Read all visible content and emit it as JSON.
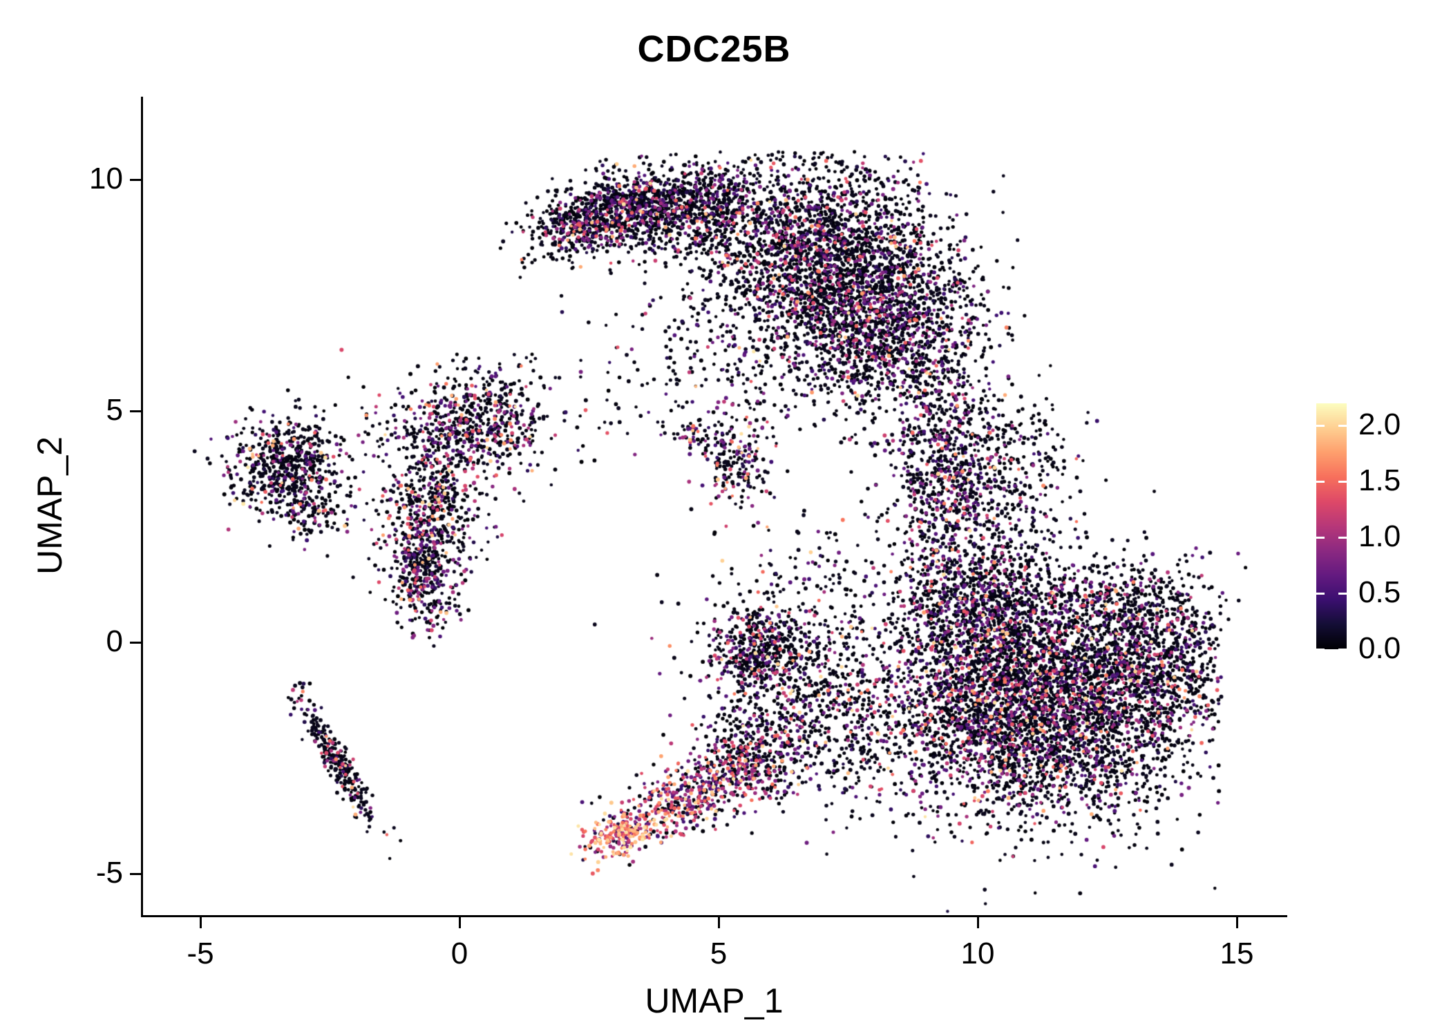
{
  "title": "CDC25B",
  "axes": {
    "x_label": "UMAP_1",
    "y_label": "UMAP_2",
    "x_ticks": [
      -5,
      0,
      5,
      10,
      15
    ],
    "y_ticks": [
      10,
      5,
      0,
      -5
    ]
  },
  "colorbar": {
    "tick_values": [
      2.0,
      1.5,
      1.0,
      0.5,
      0.0
    ],
    "tick_labels": [
      "2.0",
      "1.5",
      "1.0",
      "0.5",
      "0.0"
    ]
  },
  "chart_data": {
    "type": "scatter",
    "title": "CDC25B",
    "xlabel": "UMAP_1",
    "ylabel": "UMAP_2",
    "xlim": [
      -6,
      16
    ],
    "ylim": [
      -5.9,
      11.8
    ],
    "x_ticks": [
      -5,
      0,
      5,
      10,
      15
    ],
    "y_ticks": [
      -5,
      0,
      5,
      10
    ],
    "grid": false,
    "legend_position": "right",
    "point_radius_px": 2.5,
    "color_scale": {
      "name": "magma",
      "domain": [
        0,
        2.2
      ],
      "ticks": [
        0.0,
        0.5,
        1.0,
        1.5,
        2.0
      ],
      "stops": [
        "#000004",
        "#140e36",
        "#3b0f70",
        "#641a80",
        "#8c2981",
        "#b73779",
        "#de4968",
        "#f7705c",
        "#fe9f6d",
        "#fecf92",
        "#fcfdbf"
      ]
    },
    "value_tiers": [
      [
        0,
        0.12
      ],
      [
        0.25,
        0.85
      ],
      [
        0.85,
        1.5
      ],
      [
        1.5,
        2.1
      ]
    ],
    "clusters": [
      {
        "name": "top-arm-left",
        "cx": 2.6,
        "cy": 9.15,
        "sx": 0.75,
        "sy": 0.33,
        "angle": 18,
        "n": 650,
        "weights": [
          0.72,
          0.18,
          0.08,
          0.02
        ],
        "ymax": 10.6
      },
      {
        "name": "top-arm-mid",
        "cx": 4.3,
        "cy": 9.4,
        "sx": 0.95,
        "sy": 0.5,
        "angle": 5,
        "n": 1000,
        "weights": [
          0.72,
          0.18,
          0.08,
          0.02
        ],
        "ymax": 10.6
      },
      {
        "name": "top-main-blob",
        "cx": 7.1,
        "cy": 8.2,
        "sx": 1.25,
        "sy": 1.05,
        "angle": -25,
        "n": 2700,
        "weights": [
          0.76,
          0.15,
          0.07,
          0.02
        ],
        "ymax": 10.6
      },
      {
        "name": "top-blob-lower",
        "cx": 8.3,
        "cy": 6.7,
        "sx": 0.85,
        "sy": 0.8,
        "angle": 0,
        "n": 900,
        "weights": [
          0.74,
          0.17,
          0.07,
          0.02
        ]
      },
      {
        "name": "top-scatter-below",
        "cx": 6.3,
        "cy": 5.9,
        "sx": 1.4,
        "sy": 0.7,
        "angle": 0,
        "n": 230,
        "weights": [
          0.75,
          0.16,
          0.07,
          0.02
        ]
      },
      {
        "name": "right-connector",
        "cx": 9.4,
        "cy": 3.6,
        "sx": 0.6,
        "sy": 1.3,
        "angle": 0,
        "n": 800,
        "weights": [
          0.7,
          0.19,
          0.08,
          0.03
        ]
      },
      {
        "name": "right-connector-scatter",
        "cx": 10.3,
        "cy": 2.9,
        "sx": 0.8,
        "sy": 1.0,
        "angle": 0,
        "n": 280,
        "weights": [
          0.75,
          0.16,
          0.07,
          0.02
        ]
      },
      {
        "name": "right-upper-scatter",
        "cx": 10.9,
        "cy": 4.1,
        "sx": 0.5,
        "sy": 0.7,
        "angle": 0,
        "n": 100,
        "weights": [
          0.8,
          0.13,
          0.05,
          0.02
        ]
      },
      {
        "name": "right-main",
        "cx": 11.2,
        "cy": -1.3,
        "sx": 1.5,
        "sy": 1.25,
        "angle": 0,
        "n": 4300,
        "weights": [
          0.72,
          0.17,
          0.08,
          0.03
        ],
        "xmax": 14.7
      },
      {
        "name": "right-main-east",
        "cx": 13.4,
        "cy": -0.4,
        "sx": 0.8,
        "sy": 0.75,
        "angle": 0,
        "n": 650,
        "weights": [
          0.75,
          0.16,
          0.07,
          0.02
        ],
        "xmax": 14.75
      },
      {
        "name": "right-main-north",
        "cx": 10.1,
        "cy": 0.7,
        "sx": 0.95,
        "sy": 0.75,
        "angle": 0,
        "n": 850,
        "weights": [
          0.72,
          0.18,
          0.07,
          0.03
        ]
      },
      {
        "name": "right-main-tip",
        "cx": 12.9,
        "cy": 1.0,
        "sx": 0.85,
        "sy": 0.5,
        "angle": 0,
        "n": 250,
        "weights": [
          0.78,
          0.14,
          0.06,
          0.02
        ]
      },
      {
        "name": "left-cluster",
        "cx": -3.3,
        "cy": 3.8,
        "sx": 0.55,
        "sy": 0.55,
        "angle": 0,
        "n": 620,
        "weights": [
          0.74,
          0.16,
          0.07,
          0.03
        ]
      },
      {
        "name": "left-cluster-tail",
        "cx": -2.9,
        "cy": 2.9,
        "sx": 0.35,
        "sy": 0.3,
        "angle": 0,
        "n": 90,
        "weights": [
          0.75,
          0.16,
          0.06,
          0.03
        ]
      },
      {
        "name": "centerleft-top",
        "cx": 0.2,
        "cy": 4.6,
        "sx": 0.85,
        "sy": 0.45,
        "angle": 0,
        "n": 520,
        "weights": [
          0.68,
          0.19,
          0.09,
          0.04
        ]
      },
      {
        "name": "centerleft-mid",
        "cx": -0.5,
        "cy": 3.0,
        "sx": 0.55,
        "sy": 0.75,
        "angle": 0,
        "n": 430,
        "weights": [
          0.68,
          0.19,
          0.09,
          0.04
        ]
      },
      {
        "name": "centerleft-low",
        "cx": -0.7,
        "cy": 1.5,
        "sx": 0.35,
        "sy": 0.65,
        "angle": 0,
        "n": 420,
        "weights": [
          0.66,
          0.2,
          0.1,
          0.04
        ]
      },
      {
        "name": "centerleft-topscatter",
        "cx": 0.6,
        "cy": 5.4,
        "sx": 0.55,
        "sy": 0.4,
        "angle": 0,
        "n": 140,
        "weights": [
          0.72,
          0.18,
          0.07,
          0.03
        ]
      },
      {
        "name": "left-diagonal",
        "cx": -2.35,
        "cy": -2.6,
        "sx": 0.75,
        "sy": 0.14,
        "angle": -62,
        "n": 280,
        "weights": [
          0.78,
          0.14,
          0.06,
          0.02
        ]
      },
      {
        "name": "bottom-tip-hot",
        "cx": 3.1,
        "cy": -4.15,
        "sx": 0.33,
        "sy": 0.22,
        "angle": 20,
        "n": 220,
        "weights": [
          0.06,
          0.14,
          0.35,
          0.45
        ]
      },
      {
        "name": "bottom-branch-mid",
        "cx": 4.3,
        "cy": -3.4,
        "sx": 0.7,
        "sy": 0.35,
        "angle": 25,
        "n": 380,
        "weights": [
          0.3,
          0.25,
          0.3,
          0.15
        ]
      },
      {
        "name": "bottom-branch-upper",
        "cx": 5.6,
        "cy": -2.5,
        "sx": 0.6,
        "sy": 0.5,
        "angle": 30,
        "n": 430,
        "weights": [
          0.55,
          0.22,
          0.16,
          0.07
        ]
      },
      {
        "name": "center-small",
        "cx": 5.3,
        "cy": 3.9,
        "sx": 0.35,
        "sy": 0.55,
        "angle": 0,
        "n": 200,
        "weights": [
          0.55,
          0.25,
          0.15,
          0.05
        ]
      },
      {
        "name": "center-small-tail",
        "cx": 4.6,
        "cy": 4.5,
        "sx": 0.3,
        "sy": 0.2,
        "angle": 0,
        "n": 60,
        "weights": [
          0.7,
          0.2,
          0.07,
          0.03
        ]
      },
      {
        "name": "center-scatter",
        "cx": 6.4,
        "cy": -0.7,
        "sx": 0.9,
        "sy": 1.0,
        "angle": 0,
        "n": 520,
        "weights": [
          0.68,
          0.19,
          0.09,
          0.04
        ]
      },
      {
        "name": "center-blob",
        "cx": 5.75,
        "cy": -0.05,
        "sx": 0.5,
        "sy": 0.45,
        "angle": 0,
        "n": 380,
        "weights": [
          0.66,
          0.2,
          0.1,
          0.04
        ]
      },
      {
        "name": "center-right-trail",
        "cx": 7.6,
        "cy": -1.9,
        "sx": 0.95,
        "sy": 0.85,
        "angle": 0,
        "n": 330,
        "weights": [
          0.7,
          0.18,
          0.08,
          0.04
        ]
      },
      {
        "name": "mid-sparse",
        "cx": 7.1,
        "cy": 1.6,
        "sx": 0.7,
        "sy": 0.7,
        "angle": 0,
        "n": 70,
        "weights": [
          0.75,
          0.16,
          0.06,
          0.03
        ]
      },
      {
        "name": "gap-scatter",
        "cx": 3.6,
        "cy": 6.0,
        "sx": 0.9,
        "sy": 0.8,
        "angle": 0,
        "n": 60,
        "weights": [
          0.8,
          0.13,
          0.05,
          0.02
        ]
      }
    ]
  }
}
